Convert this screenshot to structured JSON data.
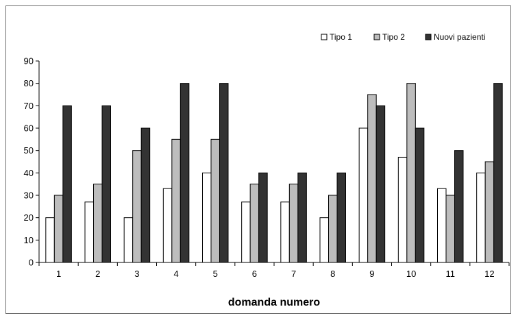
{
  "chart_data": {
    "type": "bar",
    "title": "",
    "xlabel": "domanda numero",
    "ylabel": "",
    "ylim": [
      0,
      90
    ],
    "yticks": [
      0,
      10,
      20,
      30,
      40,
      50,
      60,
      70,
      80,
      90
    ],
    "grid": false,
    "legend_position": "top-right",
    "categories": [
      "1",
      "2",
      "3",
      "4",
      "5",
      "6",
      "7",
      "8",
      "9",
      "10",
      "11",
      "12"
    ],
    "series": [
      {
        "name": "Tipo 1",
        "color": "#ffffff",
        "values": [
          20,
          27,
          20,
          33,
          40,
          27,
          27,
          20,
          60,
          47,
          33,
          40
        ]
      },
      {
        "name": "Tipo 2",
        "color": "#bdbdbd",
        "values": [
          30,
          35,
          50,
          55,
          55,
          35,
          35,
          30,
          75,
          80,
          30,
          45
        ]
      },
      {
        "name": "Nuovi pazienti",
        "color": "#333333",
        "values": [
          70,
          70,
          60,
          80,
          80,
          40,
          40,
          40,
          70,
          60,
          50,
          80
        ]
      }
    ]
  }
}
